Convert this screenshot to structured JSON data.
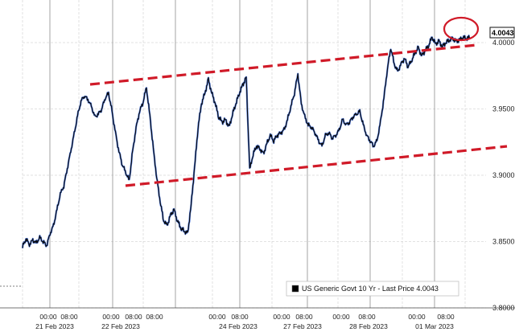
{
  "chart_data": {
    "type": "line",
    "title": "",
    "xlabel": "",
    "ylabel": "",
    "ylim": [
      3.8,
      4.02
    ],
    "y_ticks": [
      "3.8000",
      "3.8500",
      "3.9000",
      "3.9500",
      "4.0000"
    ],
    "x_time_labels": [
      "00:00",
      "08:00",
      "00:00",
      "08:00",
      "08:00",
      "00:00",
      "08:00",
      "00:00",
      "08:00",
      "00:00",
      "08:00",
      "00:00",
      "08:00"
    ],
    "x_date_labels": [
      "21 Feb 2023",
      "22 Feb 2023",
      "24 Feb 2023",
      "27 Feb 2023",
      "28 Feb 2023",
      "01 Mar 2023"
    ],
    "grid": true,
    "legend_position": "bottom-right",
    "series": [
      {
        "name": "US Generic Govt 10 Yr - Last Price",
        "color": "#0a0a0a",
        "highlight_color": "#2d5fd6",
        "x": [
          0,
          0.3,
          0.6,
          0.9,
          1.2,
          1.5,
          1.8,
          2.1,
          2.4,
          2.7,
          3.0,
          3.3,
          3.6,
          3.9,
          4.2,
          4.5,
          4.8,
          5.1,
          5.4,
          5.7,
          6.0,
          6.3,
          6.6,
          6.9,
          7.2,
          7.5,
          7.8,
          8.1,
          8.4,
          8.7,
          9.0,
          9.3,
          9.6,
          9.9,
          10.2,
          10.5,
          10.8,
          11.1,
          11.4,
          11.7,
          12.0,
          12.3,
          12.6,
          12.9,
          13.2,
          13.5,
          13.8,
          14.1,
          14.4,
          14.7,
          15.0,
          15.3,
          15.6,
          15.9,
          16.2,
          16.5,
          16.8,
          17.1,
          17.4,
          17.7,
          18.0,
          18.3,
          18.6,
          18.9,
          19.2,
          19.5,
          19.8,
          20.1,
          20.4,
          20.7,
          21.0,
          21.3,
          21.6,
          21.9,
          22.2,
          22.5,
          22.8,
          23.1,
          23.4,
          23.7,
          24.0,
          24.3,
          24.6,
          24.9,
          25.2,
          25.5,
          25.8,
          26.1,
          26.4,
          26.7,
          27.0,
          27.3,
          27.6,
          27.9,
          28.2,
          28.5,
          28.8,
          29.1,
          29.4,
          29.7,
          30.0,
          30.3,
          30.6,
          30.9,
          31.2,
          31.5,
          31.8,
          32.1,
          32.4,
          32.7,
          33.0,
          33.3,
          33.6,
          33.9,
          34.2,
          34.5,
          34.8,
          35.1,
          35.4,
          35.7,
          36.0,
          36.3,
          36.6,
          36.9,
          37.2,
          37.5,
          37.8,
          38.1,
          38.4,
          38.7,
          39.0
        ],
        "values": [
          3.846,
          3.852,
          3.848,
          3.851,
          3.849,
          3.853,
          3.85,
          3.847,
          3.856,
          3.862,
          3.874,
          3.886,
          3.892,
          3.905,
          3.918,
          3.931,
          3.945,
          3.956,
          3.96,
          3.957,
          3.952,
          3.944,
          3.946,
          3.95,
          3.958,
          3.962,
          3.948,
          3.932,
          3.918,
          3.908,
          3.902,
          3.896,
          3.918,
          3.936,
          3.948,
          3.955,
          3.966,
          3.945,
          3.92,
          3.898,
          3.88,
          3.866,
          3.862,
          3.87,
          3.874,
          3.866,
          3.86,
          3.858,
          3.856,
          3.878,
          3.906,
          3.936,
          3.954,
          3.962,
          3.972,
          3.962,
          3.954,
          3.944,
          3.94,
          3.942,
          3.936,
          3.946,
          3.954,
          3.962,
          3.968,
          3.974,
          3.904,
          3.916,
          3.922,
          3.92,
          3.916,
          3.924,
          3.93,
          3.926,
          3.93,
          3.932,
          3.934,
          3.942,
          3.952,
          3.962,
          3.976,
          3.954,
          3.944,
          3.938,
          3.936,
          3.932,
          3.926,
          3.922,
          3.93,
          3.932,
          3.928,
          3.93,
          3.934,
          3.942,
          3.938,
          3.94,
          3.944,
          3.946,
          3.948,
          3.938,
          3.93,
          3.926,
          3.922,
          3.926,
          3.94,
          3.958,
          3.98,
          3.996,
          3.984,
          3.978,
          3.984,
          3.988,
          3.982,
          3.986,
          3.992,
          3.996,
          3.99,
          3.994,
          3.998,
          4.004,
          3.999,
          4.001,
          3.997,
          4.0,
          4.002,
          4.003,
          4.001,
          4.002,
          4.004,
          4.003,
          4.004
        ]
      }
    ],
    "last_price": "4.0043",
    "legend_label": "US Generic Govt 10 Yr - Last Price 4.0043",
    "annotations": {
      "channel_color": "#d01a28",
      "circle_color": "#d01a28"
    }
  }
}
